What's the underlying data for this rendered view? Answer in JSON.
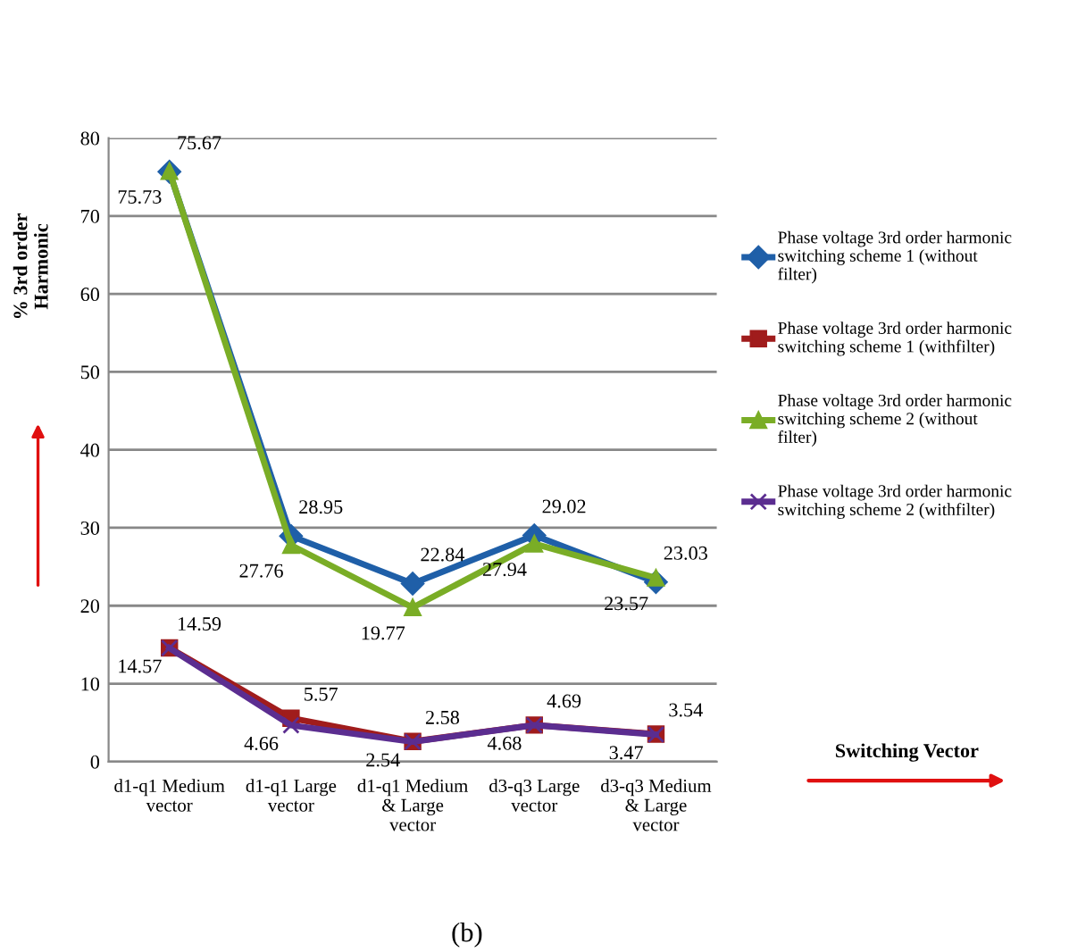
{
  "chart_data": {
    "type": "line",
    "ylabel": "% 3rd order\nHarmonic",
    "categories": [
      "d1-q1 Medium\nvector",
      "d1-q1 Large\nvector",
      "d1-q1 Medium\n& Large\nvector",
      "d3-q3 Large\nvector",
      "d3-q3 Medium\n& Large\nvector"
    ],
    "series": [
      {
        "name": "Phase voltage 3rd order harmonic\nswitching scheme 1 (without\nfilter)",
        "color": "#1f5fa8",
        "marker": "diamond",
        "values": [
          75.67,
          28.95,
          22.84,
          29.02,
          23.03
        ]
      },
      {
        "name": "Phase voltage 3rd order harmonic\nswitching scheme 1 (withfilter)",
        "color": "#a01c1c",
        "marker": "square",
        "values": [
          14.59,
          5.57,
          2.58,
          4.69,
          3.54
        ]
      },
      {
        "name": "Phase voltage 3rd order harmonic\nswitching scheme 2 (without\nfilter)",
        "color": "#7aad26",
        "marker": "triangle",
        "values": [
          75.73,
          27.76,
          19.77,
          27.94,
          23.57
        ]
      },
      {
        "name": "Phase voltage 3rd order harmonic\nswitching scheme 2 (withfilter)",
        "color": "#5b2d90",
        "marker": "cross",
        "values": [
          14.57,
          4.66,
          2.54,
          4.68,
          3.47
        ]
      }
    ],
    "ylim": [
      0,
      80
    ],
    "yticks": [
      0,
      10,
      20,
      30,
      40,
      50,
      60,
      70,
      80
    ],
    "grid": "y",
    "legend": "right",
    "data_labels": true,
    "line_style": "solid",
    "annotations": [
      "Switching Vector",
      "(b)"
    ]
  }
}
